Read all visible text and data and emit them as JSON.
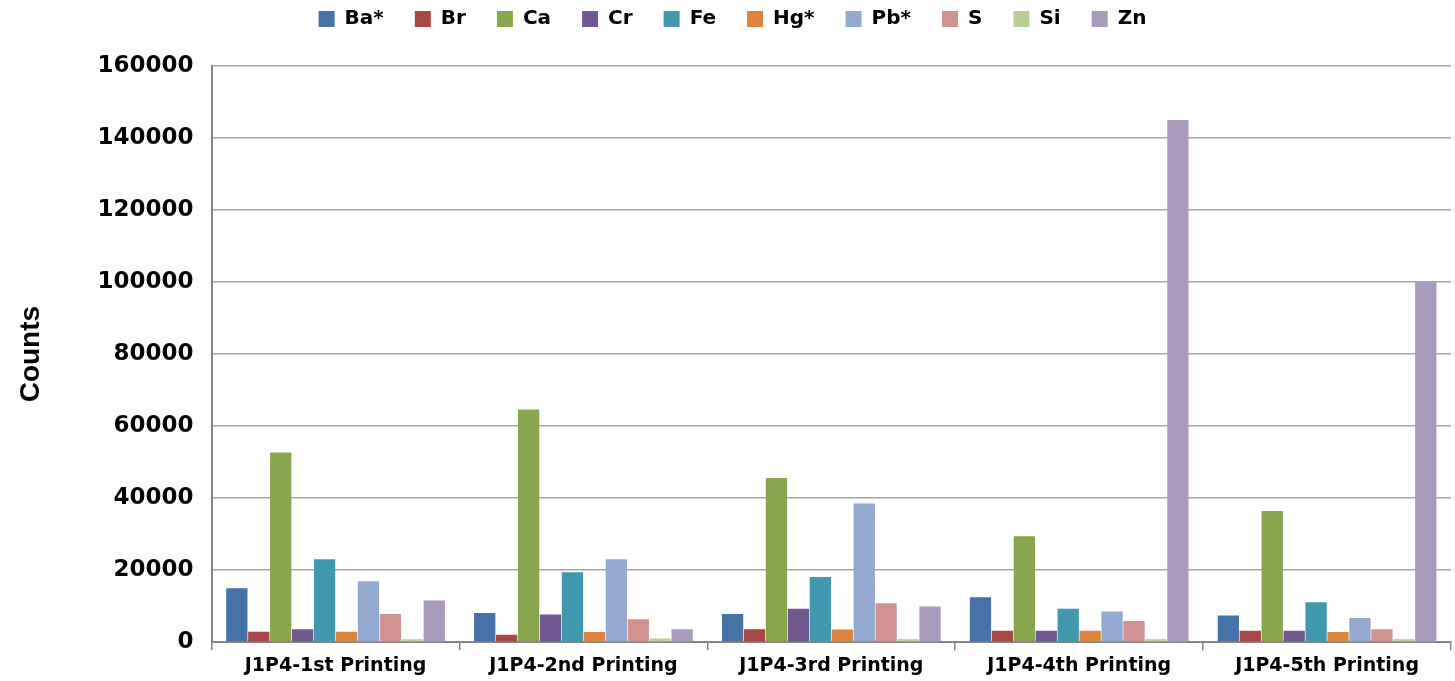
{
  "chart_data": {
    "type": "bar",
    "categories": [
      "J1P4-1st Printing",
      "J1P4-2nd Printing",
      "J1P4-3rd Printing",
      "J1P4-4th Printing",
      "J1P4-5th Printing"
    ],
    "series": [
      {
        "name": "Ba*",
        "color": "#4572a7",
        "values": [
          15000,
          8100,
          7800,
          12500,
          7400
        ]
      },
      {
        "name": "Br",
        "color": "#aa4643",
        "values": [
          2900,
          2100,
          3600,
          3200,
          3200
        ]
      },
      {
        "name": "Ca",
        "color": "#89a54e",
        "values": [
          52700,
          64600,
          45600,
          29400,
          36400
        ]
      },
      {
        "name": "Cr",
        "color": "#71588f",
        "values": [
          3600,
          7700,
          9300,
          3200,
          3200
        ]
      },
      {
        "name": "Fe",
        "color": "#4198af",
        "values": [
          23000,
          19400,
          18100,
          9300,
          11100
        ]
      },
      {
        "name": "Hg*",
        "color": "#db843d",
        "values": [
          2900,
          2800,
          3500,
          3200,
          2800
        ]
      },
      {
        "name": "Pb*",
        "color": "#93a9cf",
        "values": [
          16900,
          23000,
          38500,
          8500,
          6700
        ]
      },
      {
        "name": "S",
        "color": "#d19392",
        "values": [
          7800,
          6400,
          10800,
          5900,
          3600
        ]
      },
      {
        "name": "Si",
        "color": "#b9cd96",
        "values": [
          800,
          1000,
          800,
          800,
          800
        ]
      },
      {
        "name": "Zn",
        "color": "#a99bbd",
        "values": [
          11600,
          3600,
          9900,
          145000,
          100000
        ]
      }
    ],
    "ylabel": "Counts",
    "ylim": [
      0,
      160000
    ],
    "yticks": [
      0,
      20000,
      40000,
      60000,
      80000,
      100000,
      120000,
      140000,
      160000
    ],
    "grid": "y",
    "legend": "top"
  }
}
